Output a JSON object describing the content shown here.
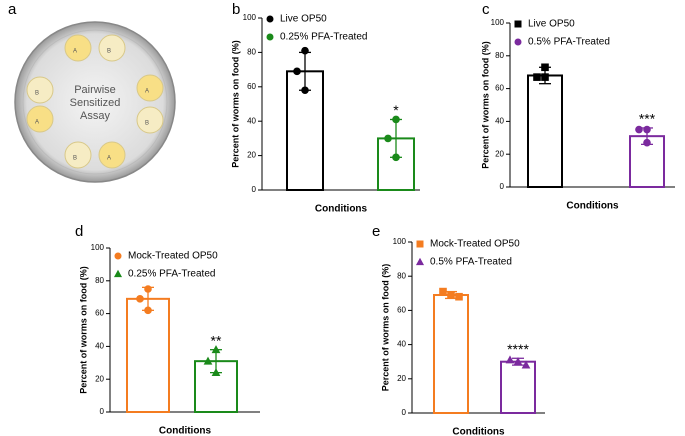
{
  "diagram": {
    "letter": "a",
    "center_text": [
      "Pairwise",
      "Sensitized",
      "Assay"
    ],
    "spots": [
      "A",
      "B",
      "B",
      "A",
      "A",
      "B",
      "B",
      "A"
    ]
  },
  "chart_data": [
    {
      "type": "bar",
      "letter": "b",
      "ylabel": "Percent of worms on food (%)",
      "xlabel": "Conditions",
      "ylim": [
        0,
        100
      ],
      "yticks": [
        0,
        20,
        40,
        60,
        80,
        100
      ],
      "series": [
        {
          "name": "Live OP50",
          "color": "#000000",
          "marker": "circle",
          "values": [
            69
          ],
          "errors": [
            11
          ],
          "points": [
            81,
            69,
            58
          ]
        },
        {
          "name": "0.25% PFA-Treated",
          "color": "#1a8a1a",
          "marker": "circle",
          "values": [
            30
          ],
          "errors": [
            11
          ],
          "points": [
            41,
            30,
            19
          ],
          "significance": "*"
        }
      ]
    },
    {
      "type": "bar",
      "letter": "c",
      "ylabel": "Percent of worms on food (%)",
      "xlabel": "Conditions",
      "ylim": [
        0,
        100
      ],
      "yticks": [
        0,
        20,
        40,
        60,
        80,
        100
      ],
      "series": [
        {
          "name": "Live OP50",
          "color": "#000000",
          "marker": "square",
          "values": [
            68
          ],
          "errors": [
            5
          ],
          "points": [
            73,
            67,
            67
          ]
        },
        {
          "name": "0.5% PFA-Treated",
          "color": "#7b2a9e",
          "marker": "circle",
          "values": [
            31
          ],
          "errors": [
            5
          ],
          "points": [
            35,
            35,
            27
          ],
          "significance": "***"
        }
      ]
    },
    {
      "type": "bar",
      "letter": "d",
      "ylabel": "Percent of worms on food (%)",
      "xlabel": "Conditions",
      "ylim": [
        0,
        100
      ],
      "yticks": [
        0,
        20,
        40,
        60,
        80,
        100
      ],
      "series": [
        {
          "name": "Mock-Treated OP50",
          "color": "#f47c20",
          "marker": "circle",
          "values": [
            69
          ],
          "errors": [
            7
          ],
          "points": [
            75,
            69,
            62
          ]
        },
        {
          "name": "0.25% PFA-Treated",
          "color": "#1a8a1a",
          "marker": "triangle",
          "values": [
            31
          ],
          "errors": [
            7
          ],
          "points": [
            38,
            31,
            24
          ],
          "significance": "**"
        }
      ]
    },
    {
      "type": "bar",
      "letter": "e",
      "ylabel": "Percent of worms on food (%)",
      "xlabel": "Conditions",
      "ylim": [
        0,
        100
      ],
      "yticks": [
        0,
        20,
        40,
        60,
        80,
        100
      ],
      "series": [
        {
          "name": "Mock-Treated OP50",
          "color": "#f47c20",
          "marker": "square",
          "values": [
            69
          ],
          "errors": [
            2
          ],
          "points": [
            71,
            69,
            68
          ]
        },
        {
          "name": "0.5% PFA-Treated",
          "color": "#7b2a9e",
          "marker": "triangle",
          "values": [
            30
          ],
          "errors": [
            2
          ],
          "points": [
            31,
            30,
            28
          ],
          "significance": "****"
        }
      ]
    }
  ]
}
